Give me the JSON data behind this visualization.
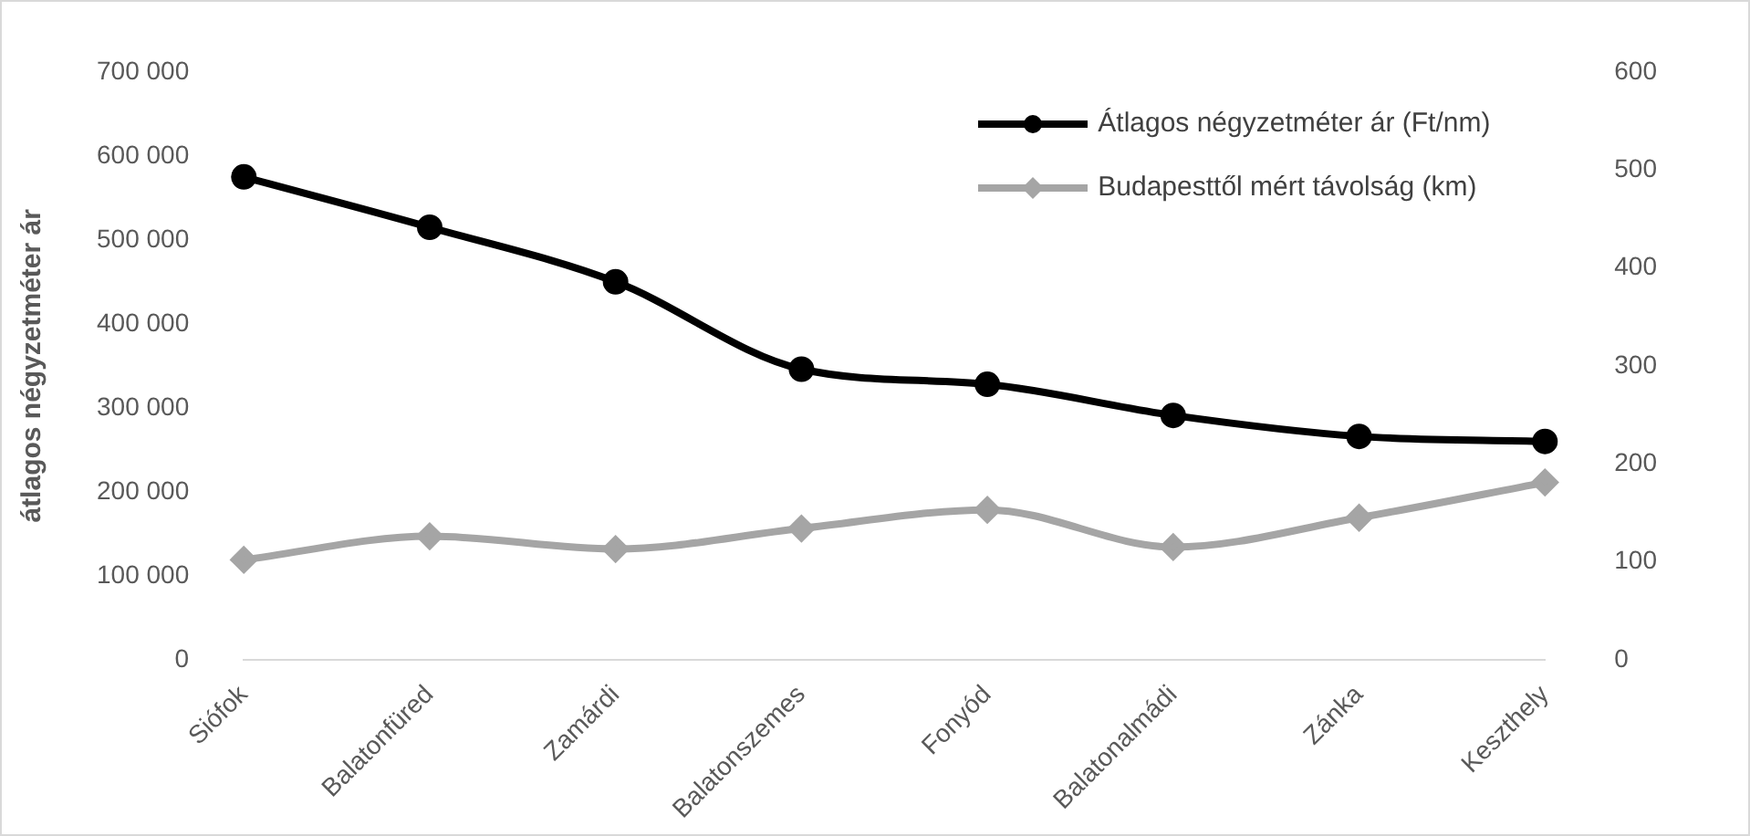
{
  "chart_data": {
    "type": "line",
    "ylabel": "átlagos négyzetméter ár",
    "categories": [
      "Siófok",
      "Balatonfüred",
      "Zamárdi",
      "Balatonszemes",
      "Fonyód",
      "Balatonalmádi",
      "Zánka",
      "Keszthely"
    ],
    "series": [
      {
        "name": "Átlagos négyzetméter ár (Ft/nm)",
        "color": "#000000",
        "marker": "circle",
        "values": [
          575000,
          515000,
          450000,
          346000,
          328000,
          291000,
          266000,
          260000
        ]
      },
      {
        "name": "Budapesttől mért távolság (km)",
        "color": "#a5a5a5",
        "marker": "diamond",
        "axis": "y2",
        "values": [
          102,
          126,
          113,
          134,
          153,
          115,
          145,
          181
        ]
      }
    ],
    "ylim": [
      0,
      700000
    ],
    "yticks": [
      {
        "value": 0,
        "label": "0"
      },
      {
        "value": 100000,
        "label": "100 000"
      },
      {
        "value": 200000,
        "label": "200 000"
      },
      {
        "value": 300000,
        "label": "300 000"
      },
      {
        "value": 400000,
        "label": "400 000"
      },
      {
        "value": 500000,
        "label": "500 000"
      },
      {
        "value": 600000,
        "label": "600 000"
      },
      {
        "value": 700000,
        "label": "700 000"
      }
    ],
    "y2lim": [
      0,
      600
    ],
    "y2ticks": [
      0,
      100,
      200,
      300,
      400,
      500,
      600
    ],
    "grid": false,
    "legend": "top right"
  }
}
